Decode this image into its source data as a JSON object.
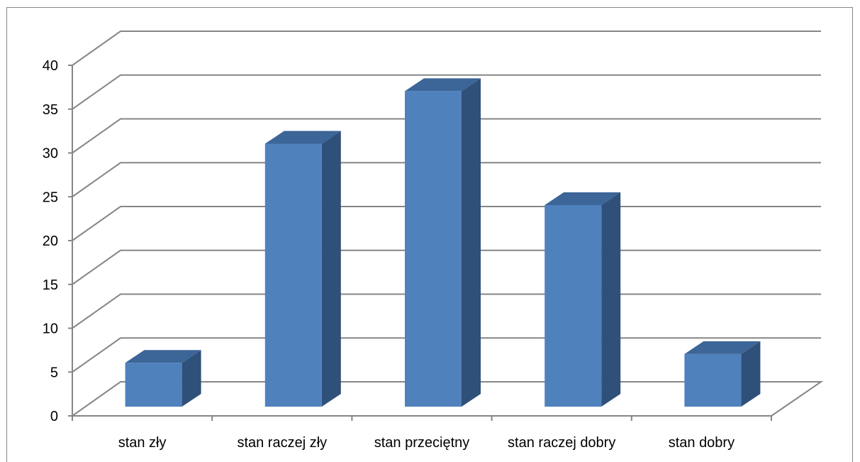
{
  "chart_data": {
    "type": "bar",
    "categories": [
      "stan zły",
      "stan raczej zły",
      "stan przeciętny",
      "stan raczej dobry",
      "stan dobry"
    ],
    "values": [
      5,
      30,
      36,
      23,
      6
    ],
    "title": "",
    "xlabel": "",
    "ylabel": "",
    "ylim": [
      0,
      40
    ],
    "yticks": [
      0,
      5,
      10,
      15,
      20,
      25,
      30,
      35,
      40
    ],
    "grid": true,
    "style": "3d-column"
  },
  "colors": {
    "bar_front": "#4f81bd",
    "bar_side": "#2f5079",
    "bar_top": "#3c6598",
    "gridline": "#868686",
    "frame": "#868686"
  }
}
